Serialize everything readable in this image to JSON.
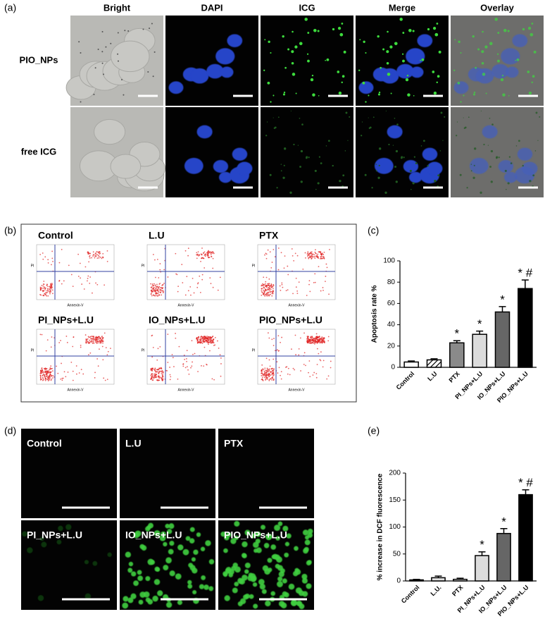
{
  "panel_labels": [
    "(a)",
    "(b)",
    "(c)",
    "(d)",
    "(e)"
  ],
  "panel_a": {
    "columns": [
      "Bright",
      "DAPI",
      "ICG",
      "Merge",
      "Overlay"
    ],
    "rows": [
      "PIO_NPs",
      "free ICG"
    ]
  },
  "panel_b": {
    "plots": [
      "Control",
      "L.U",
      "PTX",
      "PI_NPs+L.U",
      "IO_NPs+L.U",
      "PIO_NPs+L.U"
    ],
    "x_label": "Annexin-V",
    "y_label": "PI"
  },
  "panel_d": {
    "images": [
      "Control",
      "L.U",
      "PTX",
      "PI_NPs+L.U",
      "IO_NPs+L.U",
      "PIO_NPs+L.U"
    ]
  },
  "chart_data": [
    {
      "type": "bar",
      "y_label": "Apoptosis rate %",
      "categories": [
        "Control",
        "L.U",
        "PTX",
        "PI_NPs+L.U",
        "IO_NPs+L.U",
        "PIO_NPs+L.U"
      ],
      "values": [
        5,
        7,
        23,
        31,
        52,
        74
      ],
      "errors": [
        1,
        1,
        2,
        3,
        5,
        8
      ],
      "annotations": [
        null,
        null,
        "*",
        "*",
        "*",
        "* #"
      ],
      "colors": [
        "#ffffff",
        "#ffffff",
        "#8a8a8a",
        "#dcdcdc",
        "#666666",
        "#000000"
      ],
      "patterns": [
        "solid",
        "hatch",
        "solid",
        "solid",
        "solid",
        "solid"
      ],
      "ylim": [
        0,
        100
      ],
      "yticks": [
        0,
        20,
        40,
        60,
        80,
        100
      ],
      "grid": false
    },
    {
      "type": "bar",
      "y_label": "% increase in DCF fluorescence",
      "categories": [
        "Control",
        "L.U.",
        "PTX",
        "PI_NPs+L.U",
        "IO_NPs+L.U",
        "PIO_NPs+L.U"
      ],
      "values": [
        2,
        6,
        3,
        47,
        88,
        160
      ],
      "errors": [
        1,
        3,
        2,
        7,
        9,
        9
      ],
      "annotations": [
        null,
        null,
        null,
        "*",
        "*",
        "* #"
      ],
      "colors": [
        "#ffffff",
        "#e0e0e0",
        "#ffffff",
        "#dcdcdc",
        "#666666",
        "#000000"
      ],
      "patterns": [
        "solid",
        "solid",
        "solid",
        "solid",
        "solid",
        "solid"
      ],
      "ylim": [
        0,
        200
      ],
      "yticks": [
        0,
        50,
        100,
        150,
        200
      ],
      "grid": false
    }
  ]
}
